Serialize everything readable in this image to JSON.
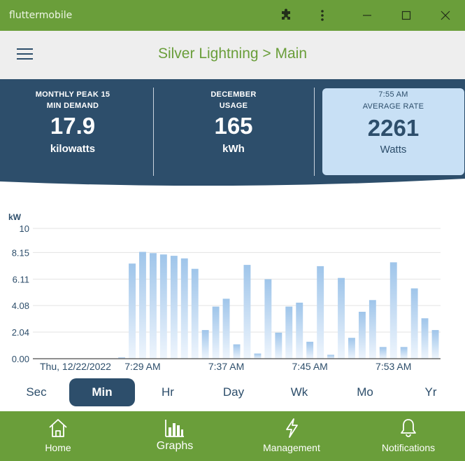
{
  "window": {
    "app_name": "fluttermobile",
    "icons": [
      "puzzle-icon",
      "more-vert-icon",
      "minimize-icon",
      "maximize-icon",
      "close-icon"
    ]
  },
  "header": {
    "title": "Silver Lightning > Main"
  },
  "stats": [
    {
      "caption_line1": "MONTHLY PEAK 15",
      "caption_line2": "MIN DEMAND",
      "value": "17.9",
      "unit": "kilowatts"
    },
    {
      "caption_line1": "DECEMBER",
      "caption_line2": "USAGE",
      "value": "165",
      "unit": "kWh"
    },
    {
      "caption_line1": "7:55 AM",
      "caption_line2": "AVERAGE RATE",
      "value": "2261",
      "unit": "Watts"
    }
  ],
  "colors": {
    "brand_green": "#6a9e3a",
    "navy": "#2d4e6b",
    "card_blue": "#c8e0f5",
    "bar_top": "#9fc5ea",
    "bar_bottom": "#eef5fd"
  },
  "chart_data": {
    "type": "bar",
    "ylabel": "kW",
    "ylim": [
      0,
      10
    ],
    "yticks": [
      "0.00",
      "2.04",
      "4.08",
      "6.11",
      "8.15",
      "10"
    ],
    "ytick_values": [
      0,
      2.04,
      4.08,
      6.11,
      8.15,
      10
    ],
    "xticks": [
      {
        "label": "Thu, 12/22/2022",
        "index": 0
      },
      {
        "label": "7:29 AM",
        "index": 10
      },
      {
        "label": "7:37 AM",
        "index": 18
      },
      {
        "label": "7:45 AM",
        "index": 26
      },
      {
        "label": "7:53 AM",
        "index": 34
      }
    ],
    "values": [
      0,
      0,
      0,
      0,
      0,
      0,
      0,
      0,
      0.1,
      7.3,
      8.2,
      8.1,
      8.0,
      7.9,
      7.7,
      6.9,
      2.2,
      4.0,
      4.6,
      1.1,
      7.2,
      0.4,
      6.1,
      2.0,
      4.0,
      4.3,
      1.3,
      7.1,
      0.3,
      6.2,
      1.6,
      3.6,
      4.5,
      0.9,
      7.4,
      0.9,
      5.4,
      3.1,
      2.2
    ],
    "grid": true,
    "legend": "none"
  },
  "ranges": [
    {
      "label": "Sec",
      "active": false
    },
    {
      "label": "Min",
      "active": true
    },
    {
      "label": "Hr",
      "active": false
    },
    {
      "label": "Day",
      "active": false
    },
    {
      "label": "Wk",
      "active": false
    },
    {
      "label": "Mo",
      "active": false
    },
    {
      "label": "Yr",
      "active": false
    }
  ],
  "nav": [
    {
      "label": "Home",
      "icon": "home-icon",
      "active": false
    },
    {
      "label": "Graphs",
      "icon": "bar-chart-icon",
      "active": true
    },
    {
      "label": "Management",
      "icon": "lightning-icon",
      "active": false
    },
    {
      "label": "Notifications",
      "icon": "bell-icon",
      "active": false
    }
  ]
}
